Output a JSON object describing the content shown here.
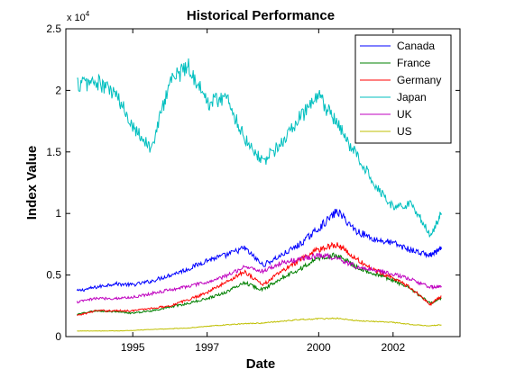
{
  "chart_data": {
    "type": "line",
    "title": "Historical Performance",
    "xlabel": "Date",
    "ylabel": "Index Value",
    "y_multiplier_label": "x 10",
    "y_multiplier_exponent": "4",
    "xlim": [
      1993.2,
      2003.8
    ],
    "ylim": [
      0,
      2.5
    ],
    "x_ticks": [
      1995,
      1997,
      2000,
      2002
    ],
    "x_tick_labels": [
      "1995",
      "1997",
      "2000",
      "2002"
    ],
    "y_ticks": [
      0,
      0.5,
      1,
      1.5,
      2,
      2.5
    ],
    "y_tick_labels": [
      "0",
      "0.5",
      "1",
      "1.5",
      "2",
      "2.5"
    ],
    "legend_position": "top-right",
    "grid": false,
    "x": [
      1993.5,
      1994.0,
      1994.5,
      1995.0,
      1995.5,
      1996.0,
      1996.5,
      1997.0,
      1997.5,
      1998.0,
      1998.5,
      1999.0,
      1999.5,
      2000.0,
      2000.5,
      2001.0,
      2001.5,
      2002.0,
      2002.5,
      2003.0,
      2003.3
    ],
    "series": [
      {
        "name": "Canada",
        "color": "#0000ff",
        "values": [
          0.37,
          0.4,
          0.43,
          0.42,
          0.45,
          0.5,
          0.55,
          0.62,
          0.66,
          0.72,
          0.58,
          0.66,
          0.75,
          0.88,
          1.02,
          0.86,
          0.79,
          0.76,
          0.7,
          0.66,
          0.71
        ]
      },
      {
        "name": "France",
        "color": "#008000",
        "values": [
          0.18,
          0.21,
          0.2,
          0.19,
          0.21,
          0.24,
          0.27,
          0.31,
          0.36,
          0.44,
          0.38,
          0.48,
          0.55,
          0.64,
          0.66,
          0.57,
          0.51,
          0.46,
          0.38,
          0.27,
          0.31
        ]
      },
      {
        "name": "Germany",
        "color": "#ff0000",
        "values": [
          0.17,
          0.21,
          0.21,
          0.21,
          0.23,
          0.25,
          0.3,
          0.36,
          0.44,
          0.53,
          0.42,
          0.53,
          0.62,
          0.71,
          0.75,
          0.63,
          0.54,
          0.48,
          0.39,
          0.26,
          0.33
        ]
      },
      {
        "name": "Japan",
        "color": "#00bfbf",
        "values": [
          2.05,
          2.07,
          1.98,
          1.72,
          1.52,
          2.08,
          2.2,
          1.9,
          1.95,
          1.62,
          1.42,
          1.57,
          1.78,
          1.95,
          1.72,
          1.48,
          1.25,
          1.05,
          1.08,
          0.82,
          1.0
        ]
      },
      {
        "name": "UK",
        "color": "#bf00bf",
        "values": [
          0.28,
          0.31,
          0.31,
          0.32,
          0.35,
          0.38,
          0.41,
          0.44,
          0.49,
          0.57,
          0.53,
          0.6,
          0.63,
          0.66,
          0.64,
          0.57,
          0.54,
          0.51,
          0.46,
          0.4,
          0.41
        ]
      },
      {
        "name": "US",
        "color": "#bfbf00",
        "values": [
          0.045,
          0.046,
          0.046,
          0.05,
          0.058,
          0.064,
          0.07,
          0.084,
          0.095,
          0.105,
          0.11,
          0.125,
          0.138,
          0.145,
          0.148,
          0.13,
          0.123,
          0.115,
          0.098,
          0.088,
          0.096
        ]
      }
    ]
  }
}
